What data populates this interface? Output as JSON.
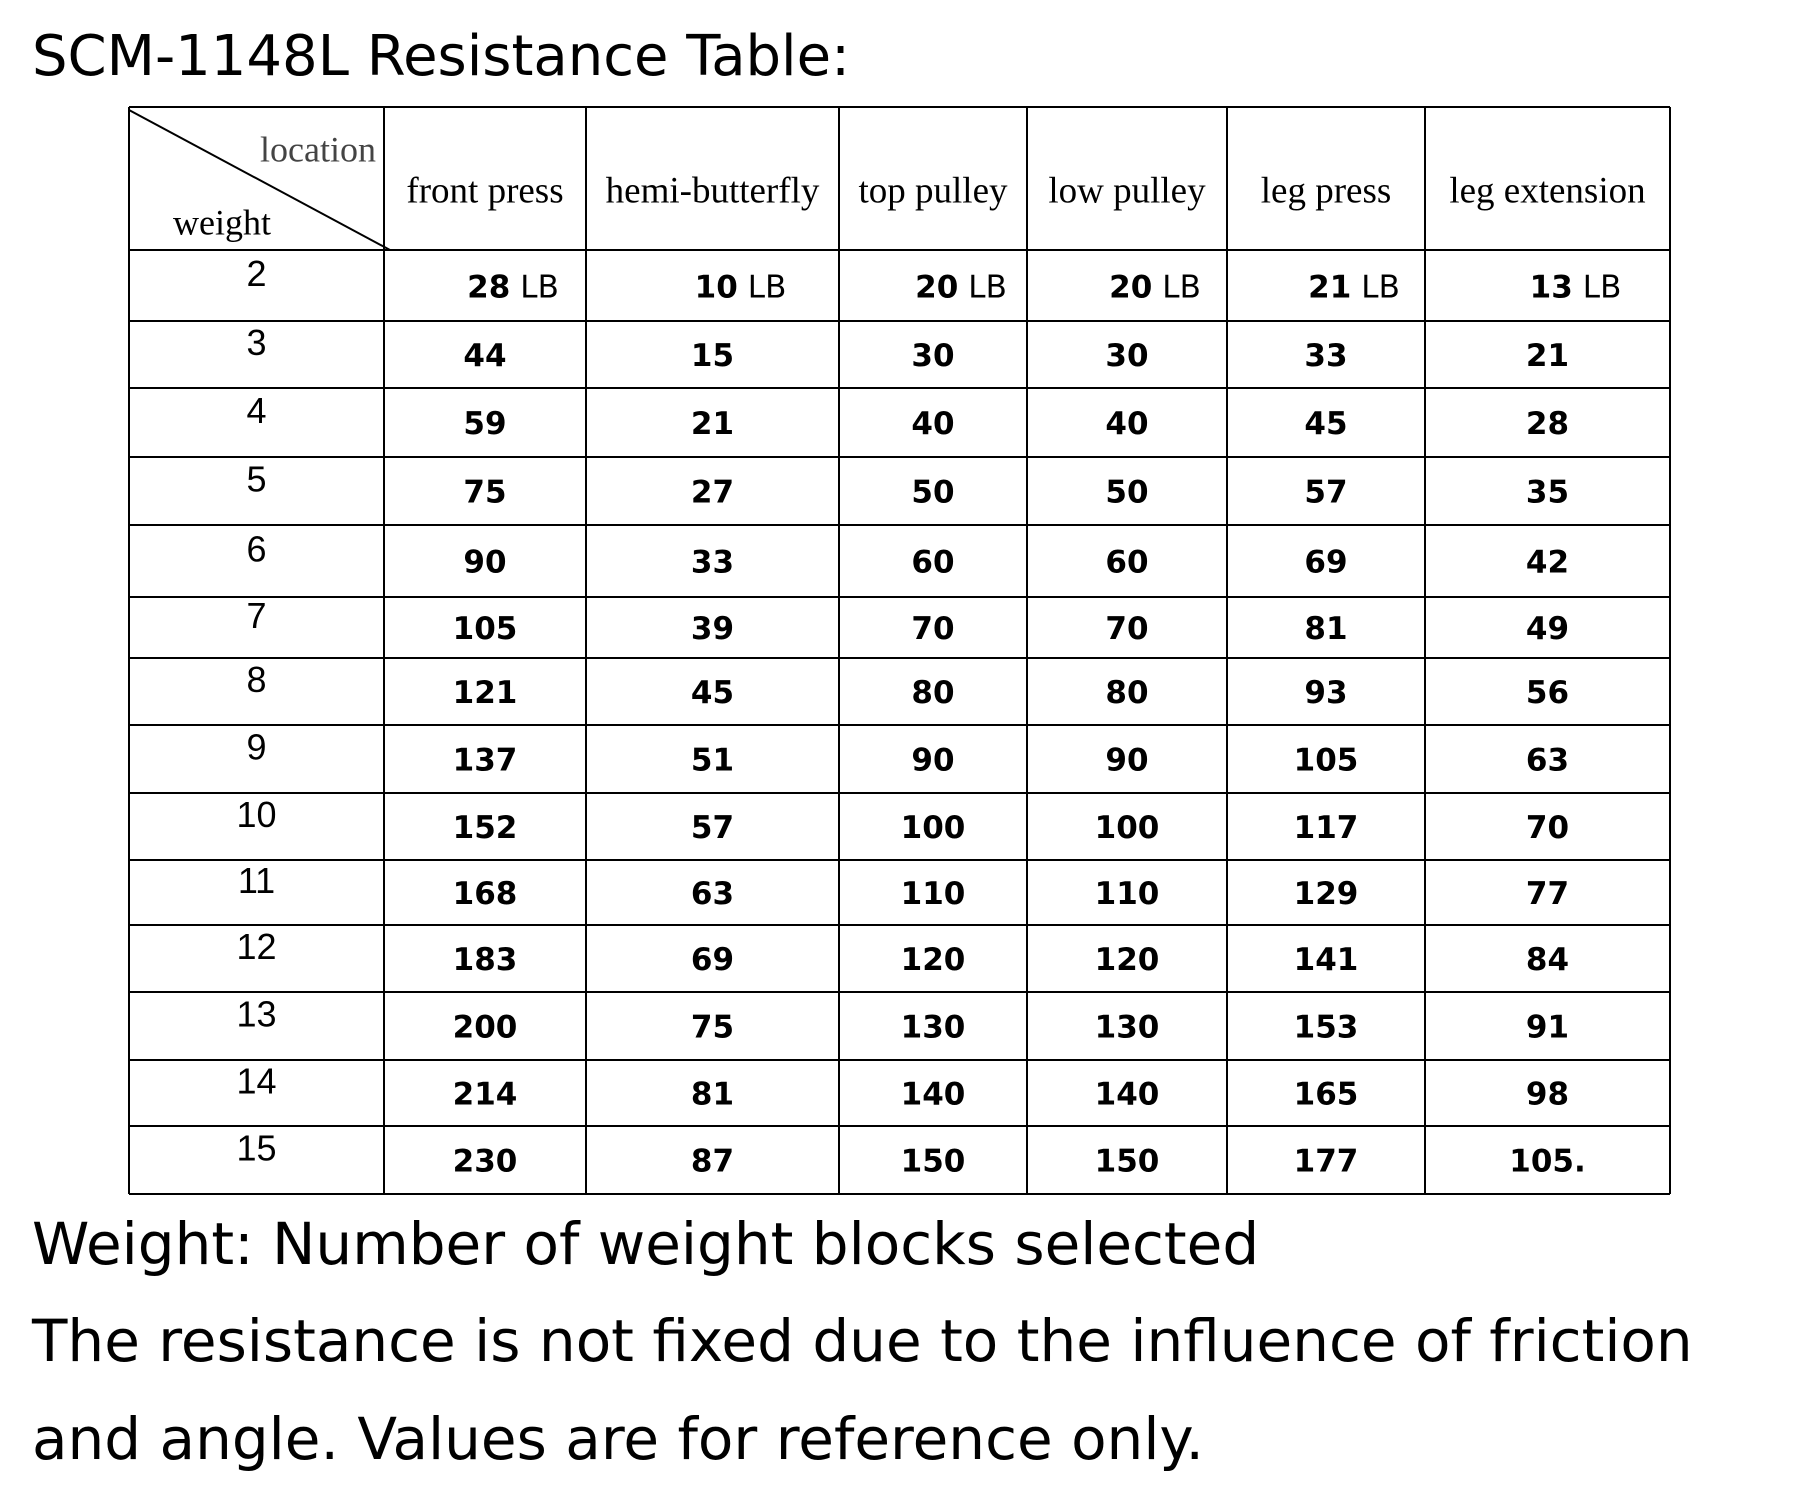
{
  "title": "SCM-1148L Resistance Table:",
  "table": {
    "corner": {
      "top": "location",
      "bottom": "weight"
    },
    "columns": [
      "front press",
      "hemi-butterfly",
      "top pulley",
      "low pulley",
      "leg press",
      "leg extension"
    ],
    "rows": [
      {
        "weight": "2",
        "values": [
          {
            "value": "28",
            "unit": "LB"
          },
          {
            "value": "10",
            "unit": "LB"
          },
          {
            "value": "20",
            "unit": "LB"
          },
          {
            "value": "20",
            "unit": "LB"
          },
          {
            "value": "21",
            "unit": "LB"
          },
          {
            "value": "13",
            "unit": "LB"
          }
        ]
      },
      {
        "weight": "3",
        "values": [
          "44",
          "15",
          "30",
          "30",
          "33",
          "21"
        ]
      },
      {
        "weight": "4",
        "values": [
          "59",
          "21",
          "40",
          "40",
          "45",
          "28"
        ]
      },
      {
        "weight": "5",
        "values": [
          "75",
          "27",
          "50",
          "50",
          "57",
          "35"
        ]
      },
      {
        "weight": "6",
        "values": [
          "90",
          "33",
          "60",
          "60",
          "69",
          "42"
        ]
      },
      {
        "weight": "7",
        "values": [
          "105",
          "39",
          "70",
          "70",
          "81",
          "49"
        ]
      },
      {
        "weight": "8",
        "values": [
          "121",
          "45",
          "80",
          "80",
          "93",
          "56"
        ]
      },
      {
        "weight": "9",
        "values": [
          "137",
          "51",
          "90",
          "90",
          "105",
          "63"
        ]
      },
      {
        "weight": "10",
        "values": [
          "152",
          "57",
          "100",
          "100",
          "117",
          "70"
        ]
      },
      {
        "weight": "11",
        "values": [
          "168",
          "63",
          "110",
          "110",
          "129",
          "77"
        ]
      },
      {
        "weight": "12",
        "values": [
          "183",
          "69",
          "120",
          "120",
          "141",
          "84"
        ]
      },
      {
        "weight": "13",
        "values": [
          "200",
          "75",
          "130",
          "130",
          "153",
          "91"
        ]
      },
      {
        "weight": "14",
        "values": [
          "214",
          "81",
          "140",
          "140",
          "165",
          "98"
        ]
      },
      {
        "weight": "15",
        "values": [
          "230",
          "87",
          "150",
          "150",
          "177",
          "105."
        ]
      }
    ]
  },
  "notes": [
    "Weight: Number of weight blocks selected",
    "The resistance is not fixed due to the influence of friction",
    "and angle. Values are for reference only."
  ]
}
